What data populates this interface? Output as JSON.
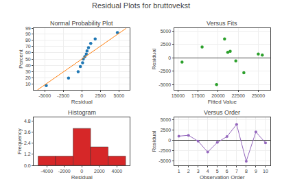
{
  "title": "Residual Plots for bruttovekst",
  "chart_data": [
    {
      "type": "scatter",
      "title": "Normal Probability Plot",
      "x_label": "Residual",
      "y_label": "Percent",
      "series": [
        {
          "type": "scatter",
          "x": [
            -4800,
            -1800,
            -500,
            -200,
            100,
            200,
            400,
            600,
            700,
            900,
            1200,
            1800,
            4800
          ],
          "values": [
            8,
            20,
            30,
            38,
            44,
            50,
            54,
            58,
            63,
            68,
            75,
            82,
            92
          ]
        },
        {
          "type": "line",
          "x": [
            -6000,
            6000
          ],
          "values": [
            1,
            99
          ]
        }
      ],
      "xlim": [
        -6500,
        6500
      ],
      "ylim": [
        1,
        99
      ],
      "xticks": [
        -5000,
        -2500,
        0,
        2500,
        5000
      ],
      "yticks": [
        10,
        20,
        30,
        40,
        50,
        60,
        70,
        80,
        90,
        99
      ],
      "grid": true
    },
    {
      "type": "scatter",
      "title": "Versus Fits",
      "x_label": "Fitted Value",
      "y_label": "Residual",
      "x": [
        15500,
        18000,
        19800,
        20800,
        21200,
        21500,
        22200,
        23200,
        25000,
        25500
      ],
      "values": [
        -800,
        2000,
        -5000,
        3500,
        1000,
        1200,
        -600,
        -2800,
        700,
        500
      ],
      "xlim": [
        14500,
        26500
      ],
      "ylim": [
        -6000,
        5500
      ],
      "xticks": [
        15000,
        17500,
        20000,
        22500,
        25000
      ],
      "yticks": [
        -5000,
        -2500,
        0,
        2500,
        5000
      ],
      "grid": true
    },
    {
      "type": "histogram",
      "title": "Histogram",
      "x_label": "Residual",
      "y_label": "Frequency",
      "bins": [
        -5000,
        -3000,
        -1000,
        1000,
        3000,
        5000
      ],
      "values": [
        1,
        1,
        4,
        2,
        1
      ],
      "xlim": [
        -5500,
        5500
      ],
      "ylim": [
        0,
        5.2
      ],
      "xticks": [
        -4000,
        -2000,
        0,
        2000,
        4000
      ],
      "yticks": [
        {
          "value": 0.0,
          "label": "0.0"
        },
        1.2,
        2.4,
        3.6,
        4.8
      ],
      "grid": false
    },
    {
      "type": "line",
      "title": "Versus Order",
      "x_label": "Observation Order",
      "y_label": "Residual",
      "x": [
        1,
        2,
        3,
        4,
        5,
        6,
        7,
        8,
        9,
        10
      ],
      "values": [
        1000,
        1200,
        -200,
        -2800,
        -500,
        900,
        3800,
        -5000,
        2000,
        -600
      ],
      "marker": "circle",
      "xlim": [
        0.5,
        10.5
      ],
      "ylim": [
        -6000,
        5500
      ],
      "xticks": [
        1,
        2,
        3,
        4,
        5,
        6,
        7,
        8,
        9,
        10
      ],
      "yticks": [
        -5000,
        -2500,
        0,
        2500,
        5000
      ],
      "grid": true
    }
  ]
}
